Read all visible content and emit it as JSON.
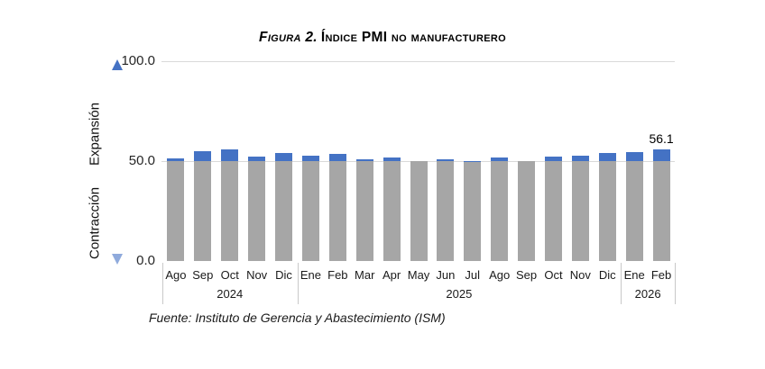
{
  "title": {
    "prefix": "Figura 2.",
    "main": "Índice PMI no manufacturero"
  },
  "y_axis": {
    "tick_100": "100.0",
    "tick_50": "50.0",
    "tick_0": "0.0",
    "expansion": "Expansión",
    "contraction": "Contracción"
  },
  "source": "Fuente: Instituto de Gerencia y Abastecimiento (ISM)",
  "colors": {
    "bar_gray": "#A6A6A6",
    "bar_blue": "#4472C4",
    "arrow_dark": "#4472C4",
    "arrow_light": "#8FAADC",
    "gridline": "#D9D9D9",
    "separator": "#C9C9C9"
  },
  "chart_data": {
    "type": "bar",
    "title": "Figura 2. Índice PMI no manufacturero",
    "xlabel": "",
    "ylabel": "",
    "ylim": [
      0,
      100
    ],
    "yticks": [
      0,
      50,
      100
    ],
    "reference_line": 50,
    "zones": {
      "above_reference": "Expansión",
      "below_reference": "Contracción"
    },
    "grid": "horizontal",
    "legend": null,
    "categories": [
      "Ago",
      "Sep",
      "Oct",
      "Nov",
      "Dic",
      "Ene",
      "Feb",
      "Mar",
      "Apr",
      "May",
      "Jun",
      "Jul",
      "Ago",
      "Sep",
      "Oct",
      "Nov",
      "Dic",
      "Ene",
      "Feb"
    ],
    "year_groups": [
      {
        "label": "2024",
        "count": 5
      },
      {
        "label": "2025",
        "count": 12
      },
      {
        "label": "2026",
        "count": 2
      }
    ],
    "values": [
      51.5,
      54.9,
      56.0,
      52.1,
      54.1,
      52.8,
      53.5,
      50.8,
      51.6,
      49.9,
      50.8,
      50.1,
      52.0,
      50.0,
      52.4,
      52.6,
      54.2,
      54.4,
      56.1
    ],
    "data_labels": [
      {
        "index": 18,
        "label": "56.1"
      }
    ],
    "bar_color_below_reference": "#A6A6A6",
    "bar_color_above_reference": "#4472C4"
  }
}
